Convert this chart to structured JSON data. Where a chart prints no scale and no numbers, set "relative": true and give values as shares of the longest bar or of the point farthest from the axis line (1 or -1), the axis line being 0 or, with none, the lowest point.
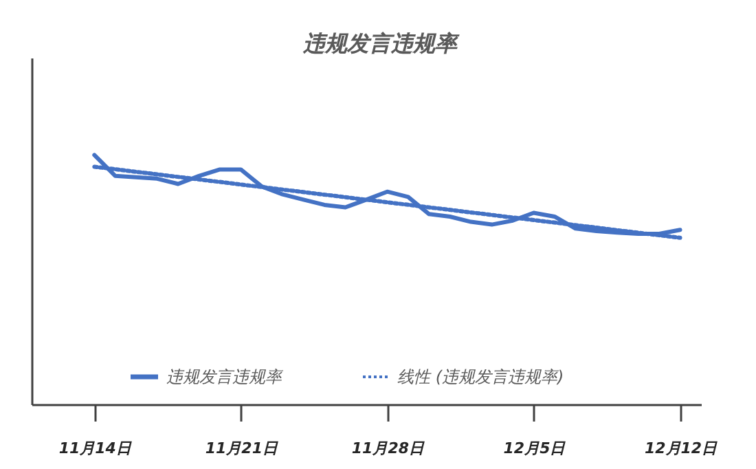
{
  "chart_data": {
    "type": "line",
    "title": "违规发言违规率",
    "relative": true,
    "x": [
      "--11-14",
      "--11-15",
      "--11-16",
      "--11-17",
      "--11-18",
      "--11-19",
      "--11-20",
      "--11-21",
      "--11-22",
      "--11-23",
      "--11-24",
      "--11-25",
      "--11-26",
      "--11-27",
      "--11-28",
      "--11-29",
      "--11-30",
      "--12-01",
      "--12-02",
      "--12-03",
      "--12-04",
      "--12-05",
      "--12-06",
      "--12-07",
      "--12-08",
      "--12-09",
      "--12-10",
      "--12-11",
      "--12-12"
    ],
    "xlim": [
      "--11-11",
      "--12-13"
    ],
    "xticks": [
      {
        "value": "--11-14",
        "label": "11月14日"
      },
      {
        "value": "--11-21",
        "label": "11月21日"
      },
      {
        "value": "--11-28",
        "label": "11月28日"
      },
      {
        "value": "--12-05",
        "label": "12月5日"
      },
      {
        "value": "--12-12",
        "label": "12月12日"
      }
    ],
    "series": [
      {
        "name": "违规发言违规率",
        "color": "#4472c4",
        "line_style": "solid",
        "values": [
          1.0,
          0.916,
          0.911,
          0.905,
          0.884,
          0.916,
          0.942,
          0.942,
          0.874,
          0.842,
          0.821,
          0.8,
          0.79,
          0.821,
          0.853,
          0.832,
          0.763,
          0.753,
          0.732,
          0.721,
          0.737,
          0.768,
          0.753,
          0.705,
          0.695,
          0.689,
          0.684,
          0.684,
          0.7
        ]
      },
      {
        "name": "线性 (违规发言违规率)",
        "color": "#4472c4",
        "line_style": "dotted",
        "x": [
          "--11-14",
          "--12-12"
        ],
        "values": [
          0.953,
          0.668
        ]
      }
    ],
    "legend": "bottom",
    "grid": false,
    "marker": "none"
  }
}
